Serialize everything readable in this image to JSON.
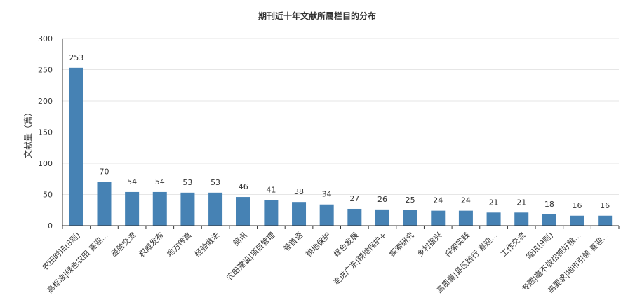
{
  "chart_data": {
    "type": "bar",
    "title": "期刊近十年文献所属栏目的分布",
    "ylabel": "文献量（篇）",
    "xlabel": "",
    "ylim": [
      0,
      300
    ],
    "yticks": [
      0,
      50,
      100,
      150,
      200,
      250,
      300
    ],
    "grid": true,
    "bar_color": "#4682b4",
    "categories": [
      "农田时讯(8则)",
      "高标准|绿色农田 喜迎…",
      "经验交流",
      "权威发布",
      "地方传真",
      "经验做法",
      "简讯",
      "农田建设|项目管理",
      "卷首语",
      "耕地保护",
      "绿色发展",
      "走进广东|耕地保护+",
      "探索研究",
      "乡村振兴",
      "探索实践",
      "高质量|县区践行 喜迎…",
      "工作交流",
      "简讯(9则)",
      "专题|毫不放松抓好粮…",
      "高要求|地市引领 喜迎…"
    ],
    "values": [
      253,
      70,
      54,
      54,
      53,
      53,
      46,
      41,
      38,
      34,
      27,
      26,
      25,
      24,
      24,
      21,
      21,
      18,
      16,
      16
    ]
  }
}
